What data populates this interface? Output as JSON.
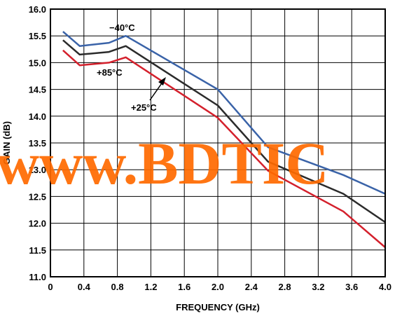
{
  "chart_data": {
    "type": "line",
    "title": "",
    "xlabel": "FREQUENCY (GHz)",
    "ylabel": "GAIN (dB)",
    "xlim": [
      0,
      4.0
    ],
    "ylim": [
      11.0,
      16.0
    ],
    "xticks": [
      "0",
      "0.4",
      "0.8",
      "1.2",
      "1.6",
      "2.0",
      "2.4",
      "2.8",
      "3.2",
      "3.6",
      "4.0"
    ],
    "yticks": [
      "11.0",
      "11.5",
      "12.0",
      "12.5",
      "13.0",
      "13.5",
      "14.0",
      "14.5",
      "15.0",
      "15.5",
      "16.0"
    ],
    "grid": true,
    "series": [
      {
        "name": "−40°C",
        "color": "#3a63a8",
        "x": [
          0.15,
          0.35,
          0.7,
          0.9,
          2.0,
          2.6,
          3.5,
          4.0
        ],
        "y": [
          15.58,
          15.31,
          15.37,
          15.5,
          14.5,
          13.42,
          12.9,
          12.55
        ]
      },
      {
        "name": "+25°C",
        "color": "#2b2b2b",
        "x": [
          0.15,
          0.35,
          0.7,
          0.9,
          2.0,
          2.6,
          3.5,
          4.0
        ],
        "y": [
          15.42,
          15.15,
          15.2,
          15.31,
          14.2,
          13.15,
          12.55,
          12.02
        ]
      },
      {
        "name": "+85°C",
        "color": "#d4202c",
        "x": [
          0.15,
          0.35,
          0.7,
          0.9,
          2.0,
          2.6,
          3.5,
          4.0
        ],
        "y": [
          15.23,
          14.95,
          15.0,
          15.1,
          13.97,
          12.98,
          12.22,
          11.55
        ]
      }
    ],
    "annotations": [
      "−40°C",
      "+85°C",
      "+25°C"
    ]
  },
  "watermark": "www.BDTIC"
}
